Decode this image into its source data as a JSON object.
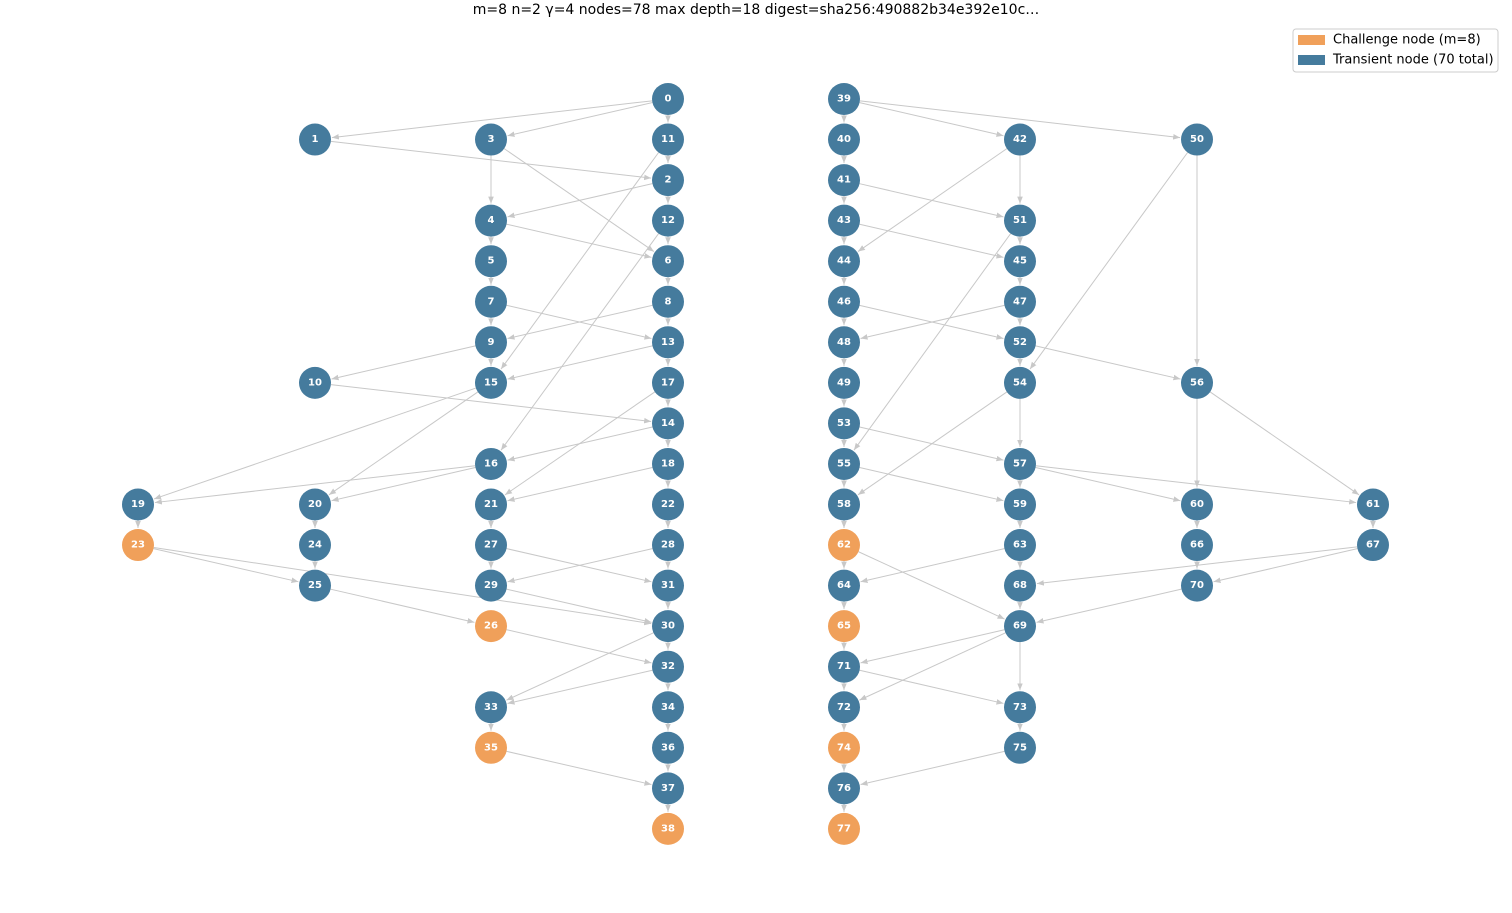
{
  "header": {
    "title": "m=8   n=2   γ=4   nodes=78   max depth=18   digest=sha256:490882b34e392e10c…"
  },
  "legend": [
    {
      "label": "Challenge node  (m=8)",
      "color": "#f0a05a"
    },
    {
      "label": "Transient node  (70 total)",
      "color": "#457b9d"
    }
  ],
  "nodes": [
    {
      "label": 0,
      "kind": 1
    },
    {
      "label": 1,
      "kind": 1
    },
    {
      "label": 2,
      "kind": 1
    },
    {
      "label": 3,
      "kind": 1
    },
    {
      "label": 4,
      "kind": 1
    },
    {
      "label": 5,
      "kind": 1
    },
    {
      "label": 6,
      "kind": 1
    },
    {
      "label": 7,
      "kind": 1
    },
    {
      "label": 8,
      "kind": 1
    },
    {
      "label": 9,
      "kind": 1
    },
    {
      "label": 10,
      "kind": 1
    },
    {
      "label": 11,
      "kind": 1
    },
    {
      "label": 12,
      "kind": 1
    },
    {
      "label": 13,
      "kind": 1
    },
    {
      "label": 14,
      "kind": 1
    },
    {
      "label": 15,
      "kind": 1
    },
    {
      "label": 16,
      "kind": 1
    },
    {
      "label": 17,
      "kind": 1
    },
    {
      "label": 18,
      "kind": 1
    },
    {
      "label": 19,
      "kind": 1
    },
    {
      "label": 20,
      "kind": 1
    },
    {
      "label": 21,
      "kind": 1
    },
    {
      "label": 22,
      "kind": 1
    },
    {
      "label": 23,
      "kind": 0
    },
    {
      "label": 24,
      "kind": 1
    },
    {
      "label": 25,
      "kind": 1
    },
    {
      "label": 26,
      "kind": 0
    },
    {
      "label": 27,
      "kind": 1
    },
    {
      "label": 28,
      "kind": 1
    },
    {
      "label": 29,
      "kind": 1
    },
    {
      "label": 30,
      "kind": 1
    },
    {
      "label": 31,
      "kind": 1
    },
    {
      "label": 32,
      "kind": 1
    },
    {
      "label": 33,
      "kind": 1
    },
    {
      "label": 34,
      "kind": 1
    },
    {
      "label": 35,
      "kind": 0
    },
    {
      "label": 36,
      "kind": 1
    },
    {
      "label": 37,
      "kind": 1
    },
    {
      "label": 38,
      "kind": 0
    },
    {
      "label": 39,
      "kind": 1
    },
    {
      "label": 40,
      "kind": 1
    },
    {
      "label": 41,
      "kind": 1
    },
    {
      "label": 42,
      "kind": 1
    },
    {
      "label": 43,
      "kind": 1
    },
    {
      "label": 44,
      "kind": 1
    },
    {
      "label": 45,
      "kind": 1
    },
    {
      "label": 46,
      "kind": 1
    },
    {
      "label": 47,
      "kind": 1
    },
    {
      "label": 48,
      "kind": 1
    },
    {
      "label": 49,
      "kind": 1
    },
    {
      "label": 50,
      "kind": 1
    },
    {
      "label": 51,
      "kind": 1
    },
    {
      "label": 52,
      "kind": 1
    },
    {
      "label": 53,
      "kind": 1
    },
    {
      "label": 54,
      "kind": 1
    },
    {
      "label": 55,
      "kind": 1
    },
    {
      "label": 56,
      "kind": 1
    },
    {
      "label": 57,
      "kind": 1
    },
    {
      "label": 58,
      "kind": 1
    },
    {
      "label": 59,
      "kind": 1
    },
    {
      "label": 60,
      "kind": 1
    },
    {
      "label": 61,
      "kind": 1
    },
    {
      "label": 62,
      "kind": 0
    },
    {
      "label": 63,
      "kind": 1
    },
    {
      "label": 64,
      "kind": 1
    },
    {
      "label": 65,
      "kind": 0
    },
    {
      "label": 66,
      "kind": 1
    },
    {
      "label": 67,
      "kind": 1
    },
    {
      "label": 68,
      "kind": 1
    },
    {
      "label": 69,
      "kind": 1
    },
    {
      "label": 70,
      "kind": 1
    },
    {
      "label": 71,
      "kind": 1
    },
    {
      "label": 72,
      "kind": 1
    },
    {
      "label": 73,
      "kind": 1
    },
    {
      "label": 74,
      "kind": 0
    },
    {
      "label": 75,
      "kind": 1
    },
    {
      "label": 76,
      "kind": 1
    },
    {
      "label": 77,
      "kind": 0
    }
  ]
}
